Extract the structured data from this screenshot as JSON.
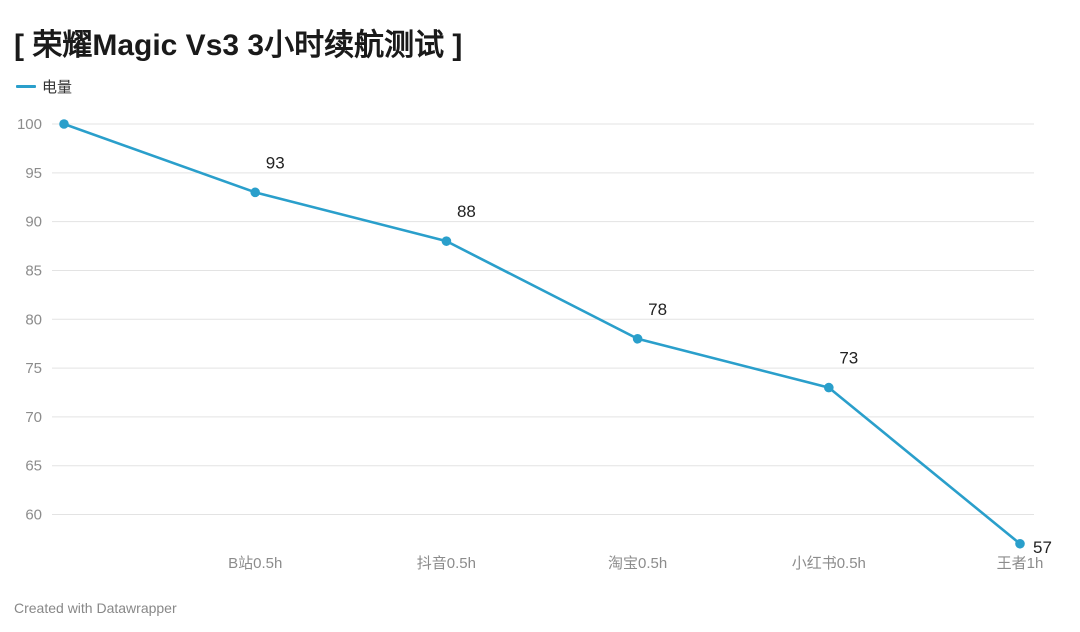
{
  "header": {
    "title": "[ 荣耀Magic Vs3 3小时续航测试 ]"
  },
  "legend": {
    "label": "电量"
  },
  "footer": {
    "credit": "Created with Datawrapper"
  },
  "colors": {
    "series": "#2a9fcb",
    "grid": "#e3e3e3"
  },
  "chart_data": {
    "type": "line",
    "title": "[ 荣耀Magic Vs3 3小时续航测试 ]",
    "xlabel": "",
    "ylabel": "",
    "categories": [
      "",
      "B站0.5h",
      "抖音0.5h",
      "淘宝0.5h",
      "小红书0.5h",
      "王者1h"
    ],
    "series": [
      {
        "name": "电量",
        "values": [
          100,
          93,
          88,
          78,
          73,
          57
        ]
      }
    ],
    "data_labels": [
      "",
      "93",
      "88",
      "78",
      "73",
      "57"
    ],
    "yticks": [
      100,
      95,
      90,
      85,
      80,
      75,
      70,
      65,
      60
    ],
    "ylim": [
      57,
      100
    ],
    "grid": true,
    "legend_position": "top-left"
  }
}
